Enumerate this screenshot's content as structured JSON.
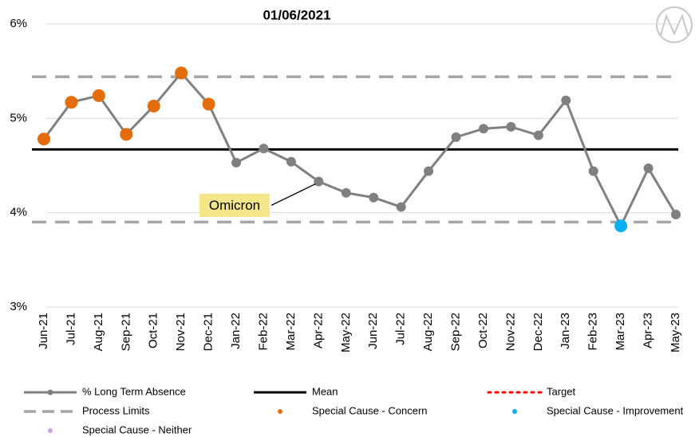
{
  "chart_data": {
    "type": "line",
    "subtitle": "01/06/2021",
    "categories": [
      "Jun-21",
      "Jul-21",
      "Aug-21",
      "Sep-21",
      "Oct-21",
      "Nov-21",
      "Dec-21",
      "Jan-22",
      "Feb-22",
      "Mar-22",
      "Apr-22",
      "May-22",
      "Jun-22",
      "Jul-22",
      "Aug-22",
      "Sep-22",
      "Oct-22",
      "Nov-22",
      "Dec-22",
      "Jan-23",
      "Feb-23",
      "Mar-23",
      "Apr-23",
      "May-23"
    ],
    "series": [
      {
        "name": "% Long Term Absence",
        "color": "#808080",
        "values": [
          4.78,
          5.17,
          5.24,
          4.83,
          5.13,
          5.48,
          5.15,
          4.53,
          4.68,
          4.54,
          4.33,
          4.21,
          4.16,
          4.06,
          4.44,
          4.8,
          4.89,
          4.91,
          4.82,
          5.19,
          4.44,
          3.86,
          4.47,
          3.98
        ]
      },
      {
        "name": "Mean",
        "color": "#000000",
        "value": 4.67
      },
      {
        "name": "Target",
        "color": "#ff0000",
        "value": null
      },
      {
        "name": "Process Limits",
        "color": "#a6a6a6",
        "upper": 5.44,
        "lower": 3.9
      },
      {
        "name": "Special Cause - Concern",
        "color": "#e46c0a",
        "values": [
          4.78,
          5.17,
          5.24,
          4.83,
          5.13,
          5.48,
          5.15,
          null,
          null,
          null,
          null,
          null,
          null,
          null,
          null,
          null,
          null,
          null,
          null,
          null,
          null,
          null,
          null,
          null
        ]
      },
      {
        "name": "Special Cause - Improvement",
        "color": "#00b0f0",
        "values": [
          null,
          null,
          null,
          null,
          null,
          null,
          null,
          null,
          null,
          null,
          null,
          null,
          null,
          null,
          null,
          null,
          null,
          null,
          null,
          null,
          null,
          3.86,
          null,
          null
        ]
      },
      {
        "name": "Special Cause - Neither",
        "color": "#c9a0e8",
        "values": [
          null,
          null,
          null,
          null,
          null,
          null,
          null,
          null,
          null,
          null,
          null,
          null,
          null,
          null,
          null,
          null,
          null,
          null,
          null,
          null,
          null,
          null,
          null,
          null
        ]
      }
    ],
    "ylim": [
      3,
      6
    ],
    "yticks": [
      {
        "value": 3,
        "label": "3%"
      },
      {
        "value": 4,
        "label": "4%"
      },
      {
        "value": 5,
        "label": "5%"
      },
      {
        "value": 6,
        "label": "6%"
      }
    ],
    "grid": true,
    "annotations": [
      {
        "text": "Omicron",
        "x": "Apr-22"
      }
    ]
  }
}
